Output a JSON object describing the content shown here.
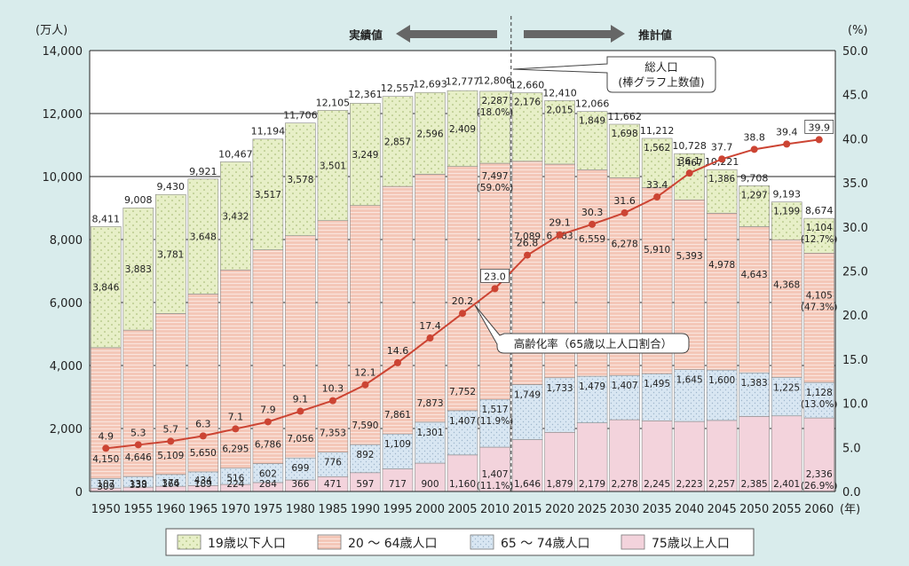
{
  "chart_data": {
    "type": "bar",
    "stacked": true,
    "y_unit": "(万人)",
    "y2_unit": "(%)",
    "x_unit": "(年)",
    "ylim": [
      0,
      14000
    ],
    "y_ticks": [
      "0",
      "2,000",
      "4,000",
      "6,000",
      "8,000",
      "10,000",
      "12,000",
      "14,000"
    ],
    "y2lim": [
      0,
      50
    ],
    "y2_ticks": [
      "0.0",
      "5.0",
      "10.0",
      "15.0",
      "20.0",
      "25.0",
      "30.0",
      "35.0",
      "40.0",
      "45.0",
      "50.0"
    ],
    "categories": [
      "1950",
      "1955",
      "1960",
      "1965",
      "1970",
      "1975",
      "1980",
      "1985",
      "1990",
      "1995",
      "2000",
      "2005",
      "2010",
      "2015",
      "2020",
      "2025",
      "2030",
      "2035",
      "2040",
      "2045",
      "2050",
      "2055",
      "2060"
    ],
    "series": [
      {
        "name": "75歳以上人口",
        "color": "#f3d3dc",
        "values": [
          107,
          139,
          164,
          189,
          224,
          284,
          366,
          471,
          597,
          717,
          900,
          1160,
          1407,
          1646,
          1879,
          2179,
          2278,
          2245,
          2223,
          2257,
          2385,
          2401,
          2336
        ],
        "labels": [
          "107",
          "139",
          "164",
          "189",
          "224",
          "284",
          "366",
          "471",
          "597",
          "717",
          "900",
          "1,160",
          "1,407",
          "1,646",
          "1,879",
          "2,179",
          "2,278",
          "2,245",
          "2,223",
          "2,257",
          "2,385",
          "2,401",
          "2,336"
        ],
        "pct_labels": {
          "12": "(11.1%)",
          "22": "(26.9%)"
        }
      },
      {
        "name": "65 ～ 74歳人口",
        "color": "#d8e6f2",
        "values": [
          309,
          338,
          376,
          434,
          516,
          602,
          699,
          776,
          892,
          1109,
          1301,
          1407,
          1517,
          1749,
          1733,
          1479,
          1407,
          1495,
          1645,
          1600,
          1383,
          1225,
          1128
        ],
        "labels": [
          "309",
          "338",
          "376",
          "434",
          "516",
          "602",
          "699",
          "776",
          "892",
          "1,109",
          "1,301",
          "1,407",
          "1,517",
          "1,749",
          "1,733",
          "1,479",
          "1,407",
          "1,495",
          "1,645",
          "1,600",
          "1,383",
          "1,225",
          "1,128"
        ],
        "pct_labels": {
          "12": "(11.9%)",
          "22": "(13.0%)"
        }
      },
      {
        "name": "20 ～ 64歳人口",
        "color": "#f4c7b8",
        "values": [
          4150,
          4646,
          5109,
          5650,
          6295,
          6786,
          7056,
          7353,
          7590,
          7861,
          7873,
          7752,
          7497,
          7089,
          6783,
          6559,
          6278,
          5910,
          5393,
          4978,
          4643,
          4368,
          4105
        ],
        "labels": [
          "4,150",
          "4,646",
          "5,109",
          "5,650",
          "6,295",
          "6,786",
          "7,056",
          "7,353",
          "7,590",
          "7,861",
          "7,873",
          "7,752",
          "7,497",
          "7,089",
          "6,783",
          "6,559",
          "6,278",
          "5,910",
          "5,393",
          "4,978",
          "4,643",
          "4,368",
          "4,105"
        ],
        "pct_labels": {
          "12": "(59.0%)",
          "22": "(47.3%)"
        }
      },
      {
        "name": "19歳以下人口",
        "color": "#e7efc7",
        "values": [
          3846,
          3883,
          3781,
          3648,
          3432,
          3517,
          3578,
          3501,
          3249,
          2857,
          2596,
          2409,
          2287,
          2176,
          2015,
          1849,
          1698,
          1562,
          1467,
          1386,
          1297,
          1199,
          1104
        ],
        "labels": [
          "3,846",
          "3,883",
          "3,781",
          "3,648",
          "3,432",
          "3,517",
          "3,578",
          "3,501",
          "3,249",
          "2,857",
          "2,596",
          "2,409",
          "2,287",
          "2,176",
          "2,015",
          "1,849",
          "1,698",
          "1,562",
          "1,467",
          "1,386",
          "1,297",
          "1,199",
          "1,104"
        ],
        "pct_labels": {
          "12": "(18.0%)",
          "22": "(12.7%)"
        }
      }
    ],
    "totals": [
      8411,
      9008,
      9430,
      9921,
      10467,
      11194,
      11706,
      12105,
      12361,
      12557,
      12693,
      12777,
      12806,
      12660,
      12410,
      12066,
      11662,
      11212,
      10728,
      10221,
      9708,
      9193,
      8674
    ],
    "total_labels": [
      "8,411",
      "9,008",
      "9,430",
      "9,921",
      "10,467",
      "11,194",
      "11,706",
      "12,105",
      "12,361",
      "12,557",
      "12,693",
      "12,777",
      "12,806",
      "12,660",
      "12,410",
      "12,066",
      "11,662",
      "11,212",
      "10,728",
      "10,221",
      "9,708",
      "9,193",
      "8,674"
    ],
    "line": {
      "name": "高齢化率（65歳以上人口割合）",
      "color": "#cc4433",
      "values": [
        4.9,
        5.3,
        5.7,
        6.3,
        7.1,
        7.9,
        9.1,
        10.3,
        12.1,
        14.6,
        17.4,
        20.2,
        23.0,
        26.8,
        29.1,
        30.3,
        31.6,
        33.4,
        36.1,
        37.7,
        38.8,
        39.4,
        39.9
      ],
      "labels": [
        "4.9",
        "5.3",
        "5.7",
        "6.3",
        "7.1",
        "7.9",
        "9.1",
        "10.3",
        "12.1",
        "14.6",
        "17.4",
        "20.2",
        "23.0",
        "26.8",
        "29.1",
        "30.3",
        "31.6",
        "33.4",
        "36.1",
        "37.7",
        "38.8",
        "39.4",
        "39.9"
      ]
    },
    "annotations": {
      "actual": "実績値",
      "projected": "推計値",
      "total_note_1": "総人口",
      "total_note_2": "(棒グラフ上数値)",
      "rate_note": "高齢化率（65歳以上人口割合）"
    },
    "legend": [
      "19歳以下人口",
      "20 ～ 64歳人口",
      "65 ～ 74歳人口",
      "75歳以上人口"
    ],
    "legend_position": "bottom",
    "grid": true
  }
}
